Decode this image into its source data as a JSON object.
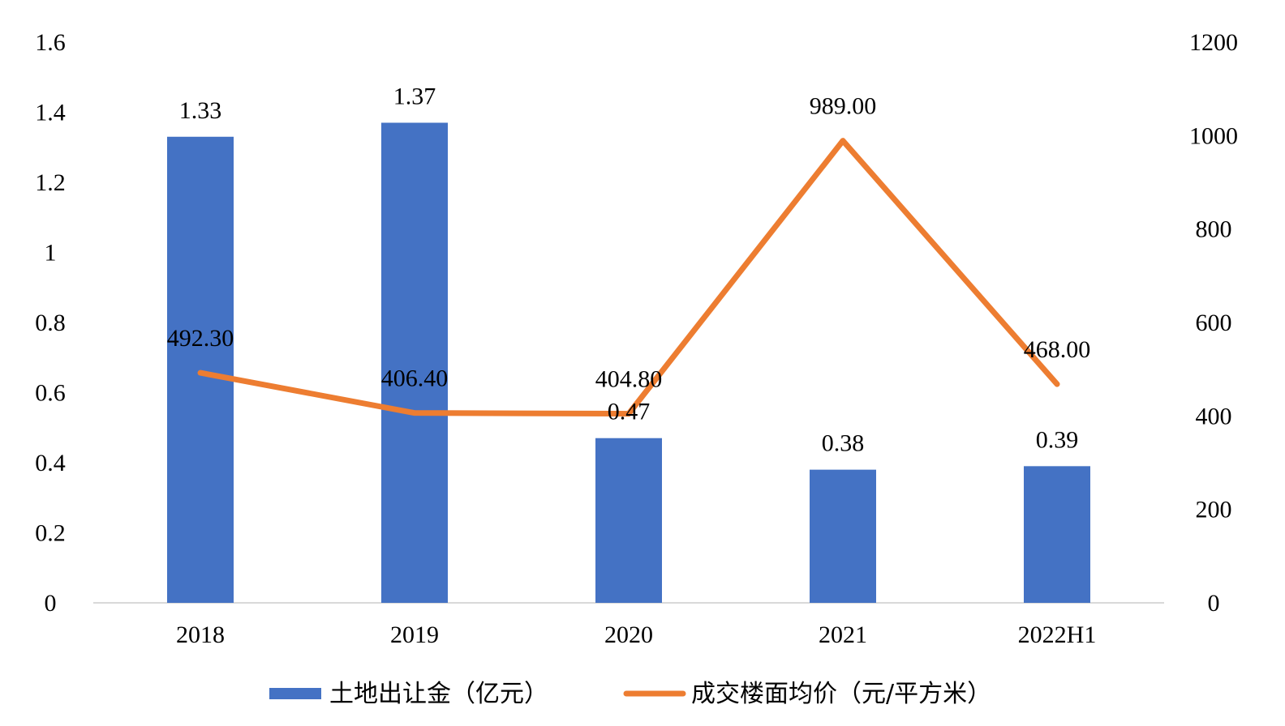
{
  "chart_data": {
    "type": "bar+line",
    "categories": [
      "2018",
      "2019",
      "2020",
      "2021",
      "2022H1"
    ],
    "series": [
      {
        "name": "土地出让金（亿元）",
        "type": "bar",
        "axis": "left",
        "color": "#4472C4",
        "values": [
          1.33,
          1.37,
          0.47,
          0.38,
          0.39
        ],
        "labels": [
          "1.33",
          "1.37",
          "0.47",
          "0.38",
          "0.39"
        ]
      },
      {
        "name": "成交楼面均价（元/平方米）",
        "type": "line",
        "axis": "right",
        "color": "#ED7D31",
        "values": [
          492.3,
          406.4,
          404.8,
          989.0,
          468.0
        ],
        "labels": [
          "492.30",
          "406.40",
          "404.80",
          "989.00",
          "468.00"
        ]
      }
    ],
    "y_left": {
      "min": 0,
      "max": 1.6,
      "ticks": [
        "0",
        "0.2",
        "0.4",
        "0.6",
        "0.8",
        "1",
        "1.2",
        "1.4",
        "1.6"
      ]
    },
    "y_right": {
      "min": 0,
      "max": 1200,
      "ticks": [
        "0",
        "200",
        "400",
        "600",
        "800",
        "1000",
        "1200"
      ]
    },
    "legend_position": "bottom",
    "grid": false
  }
}
